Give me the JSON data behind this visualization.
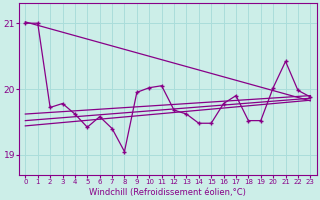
{
  "bg_color": "#cceee8",
  "grid_color": "#aaddda",
  "line_color": "#880088",
  "xlabel": "Windchill (Refroidissement éolien,°C)",
  "xlim": [
    -0.5,
    23.5
  ],
  "ylim": [
    18.7,
    21.3
  ],
  "yticks": [
    19,
    20,
    21
  ],
  "xticks": [
    0,
    1,
    2,
    3,
    4,
    5,
    6,
    7,
    8,
    9,
    10,
    11,
    12,
    13,
    14,
    15,
    16,
    17,
    18,
    19,
    20,
    21,
    22,
    23
  ],
  "series1": [
    21.0,
    21.0,
    19.72,
    19.78,
    19.62,
    19.42,
    19.58,
    19.4,
    19.05,
    19.95,
    20.02,
    20.05,
    19.68,
    19.62,
    19.48,
    19.48,
    19.78,
    19.9,
    19.52,
    19.52,
    20.02,
    20.42,
    19.98,
    19.88
  ],
  "line1_x": [
    0,
    23
  ],
  "line1_y": [
    21.02,
    19.82
  ],
  "line2_x": [
    0,
    23
  ],
  "line2_y": [
    19.62,
    19.9
  ],
  "line3_x": [
    0,
    23
  ],
  "line3_y": [
    19.52,
    19.86
  ],
  "line4_x": [
    0,
    23
  ],
  "line4_y": [
    19.44,
    19.83
  ]
}
